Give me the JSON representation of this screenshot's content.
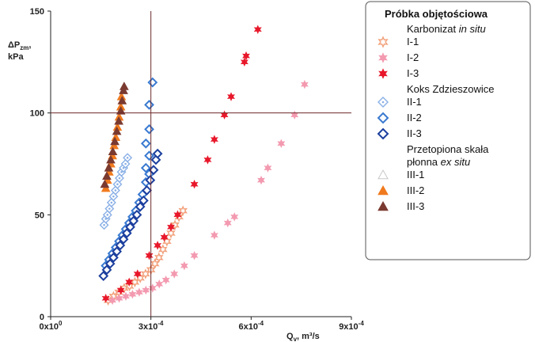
{
  "chart_data": {
    "type": "scatter",
    "ylabel_line1": "ΔP",
    "ylabel_sub": "zm",
    "ylabel_line2": "kPa",
    "xlabel_main": "Q",
    "xlabel_sub": "v",
    "xlabel_unit": "m³/s",
    "xlim": [
      0,
      0.0009
    ],
    "ylim": [
      0,
      150
    ],
    "x_ticks": [
      {
        "value": 0,
        "base": "0x10",
        "exp": "0"
      },
      {
        "value": 0.0003,
        "base": "3x10",
        "exp": "-4"
      },
      {
        "value": 0.0006,
        "base": "6x10",
        "exp": "-4"
      },
      {
        "value": 0.0009,
        "base": "9x10",
        "exp": "-4"
      }
    ],
    "y_ticks": [
      "0",
      "50",
      "100",
      "150"
    ],
    "reference_lines": {
      "x": 0.0003,
      "y": 100
    },
    "grid": false,
    "legend": {
      "title": "Próbka objętościowa",
      "position": "right",
      "groups": [
        {
          "heading": [
            "Koks Zdzieszowice"
          ]
        }
      ]
    },
    "legend_rows": [
      {
        "lines": [
          {
            "parts": [
              {
                "text": "Karbonizat "
              },
              {
                "text": "in situ",
                "italic": true
              }
            ]
          },
          {
            "parts": [
              {
                "text": "I-1"
              }
            ]
          }
        ],
        "series": 0
      },
      {
        "lines": [
          {
            "parts": [
              {
                "text": "I-2"
              }
            ]
          }
        ],
        "series": 1
      },
      {
        "lines": [
          {
            "parts": [
              {
                "text": "I-3"
              }
            ]
          }
        ],
        "series": 2
      },
      {
        "lines": [
          {
            "parts": [
              {
                "text": "Koks Zdzieszowice"
              }
            ]
          },
          {
            "parts": [
              {
                "text": "II-1"
              }
            ]
          }
        ],
        "series": 3
      },
      {
        "lines": [
          {
            "parts": [
              {
                "text": "II-2"
              }
            ]
          }
        ],
        "series": 4
      },
      {
        "lines": [
          {
            "parts": [
              {
                "text": "II-3"
              }
            ]
          }
        ],
        "series": 5
      },
      {
        "lines": [
          {
            "parts": [
              {
                "text": "Przetopiona skała"
              }
            ]
          },
          {
            "parts": [
              {
                "text": "płonna "
              },
              {
                "text": "ex situ",
                "italic": true
              }
            ]
          },
          {
            "parts": [
              {
                "text": "III-1"
              }
            ]
          }
        ],
        "series": 6
      },
      {
        "lines": [
          {
            "parts": [
              {
                "text": "III-2"
              }
            ]
          }
        ],
        "series": 7
      },
      {
        "lines": [
          {
            "parts": [
              {
                "text": "III-3"
              }
            ]
          }
        ],
        "series": 8
      }
    ],
    "series": [
      {
        "name": "I-1",
        "marker": "star-open",
        "color": "#f2a07a",
        "points": [
          [
            0.000172,
            8
          ],
          [
            0.000188,
            10
          ],
          [
            0.000204,
            12
          ],
          [
            0.00022,
            14
          ],
          [
            0.000236,
            15
          ],
          [
            0.000252,
            17
          ],
          [
            0.000268,
            19
          ],
          [
            0.000284,
            21
          ],
          [
            0.0003,
            23
          ],
          [
            0.000312,
            26
          ],
          [
            0.000324,
            29
          ],
          [
            0.000336,
            33
          ],
          [
            0.000348,
            37
          ],
          [
            0.00036,
            41
          ],
          [
            0.000372,
            45
          ],
          [
            0.000384,
            49
          ],
          [
            0.000396,
            52
          ]
        ]
      },
      {
        "name": "I-2",
        "marker": "star",
        "color": "#f39ab0",
        "points": [
          [
            0.000185,
            8
          ],
          [
            0.000205,
            9
          ],
          [
            0.000225,
            10
          ],
          [
            0.000245,
            11
          ],
          [
            0.000265,
            12
          ],
          [
            0.000285,
            13
          ],
          [
            0.000305,
            14
          ],
          [
            0.000325,
            16
          ],
          [
            0.000345,
            18
          ],
          [
            0.00037,
            21
          ],
          [
            0.0004,
            25
          ],
          [
            0.00043,
            30
          ],
          [
            0.00049,
            40
          ],
          [
            0.00053,
            46
          ],
          [
            0.00055,
            49
          ],
          [
            0.00063,
            67
          ],
          [
            0.00065,
            73
          ],
          [
            0.00069,
            85
          ],
          [
            0.00073,
            99
          ],
          [
            0.00076,
            114
          ]
        ]
      },
      {
        "name": "I-3",
        "marker": "star",
        "color": "#e8172a",
        "points": [
          [
            0.000165,
            9
          ],
          [
            0.00021,
            13
          ],
          [
            0.000235,
            17
          ],
          [
            0.00026,
            21
          ],
          [
            0.000295,
            30
          ],
          [
            0.00032,
            35
          ],
          [
            0.00034,
            39
          ],
          [
            0.00036,
            44
          ],
          [
            0.00038,
            50
          ],
          [
            0.00043,
            65
          ],
          [
            0.00047,
            77
          ],
          [
            0.00049,
            87
          ],
          [
            0.00052,
            99
          ],
          [
            0.00054,
            108
          ],
          [
            0.00058,
            125
          ],
          [
            0.000585,
            128
          ],
          [
            0.00062,
            141
          ]
        ]
      },
      {
        "name": "II-1",
        "marker": "diamond-dot",
        "color": "#8ab0e6",
        "points": [
          [
            0.00016,
            45
          ],
          [
            0.000165,
            48
          ],
          [
            0.00017,
            50
          ],
          [
            0.000176,
            53
          ],
          [
            0.000182,
            56
          ],
          [
            0.000188,
            59
          ],
          [
            0.000194,
            62
          ],
          [
            0.0002,
            65
          ],
          [
            0.000206,
            68
          ],
          [
            0.000212,
            71
          ],
          [
            0.000218,
            73
          ],
          [
            0.000224,
            75
          ],
          [
            0.00023,
            78
          ]
        ]
      },
      {
        "name": "II-2",
        "marker": "diamond-open",
        "color": "#3a7ad0",
        "points": [
          [
            0.000165,
            25
          ],
          [
            0.000175,
            28
          ],
          [
            0.000185,
            31
          ],
          [
            0.000195,
            34
          ],
          [
            0.000205,
            37
          ],
          [
            0.000215,
            40
          ],
          [
            0.000225,
            43
          ],
          [
            0.000235,
            46
          ],
          [
            0.000245,
            49
          ],
          [
            0.000255,
            52
          ],
          [
            0.000265,
            56
          ],
          [
            0.000275,
            60
          ],
          [
            0.000285,
            66
          ],
          [
            0.000295,
            70
          ],
          [
            0.000285,
            73
          ],
          [
            0.000295,
            79
          ],
          [
            0.000285,
            85
          ],
          [
            0.000295,
            92
          ],
          [
            0.000295,
            104
          ],
          [
            0.000305,
            115
          ]
        ]
      },
      {
        "name": "II-3",
        "marker": "diamond-open",
        "color": "#1c3f9e",
        "points": [
          [
            0.000158,
            20
          ],
          [
            0.000168,
            23
          ],
          [
            0.000178,
            26
          ],
          [
            0.000188,
            29
          ],
          [
            0.000198,
            32
          ],
          [
            0.000208,
            35
          ],
          [
            0.000218,
            38
          ],
          [
            0.000228,
            41
          ],
          [
            0.000238,
            44
          ],
          [
            0.000248,
            47
          ],
          [
            0.000258,
            50
          ],
          [
            0.000268,
            54
          ],
          [
            0.000278,
            57
          ],
          [
            0.000288,
            62
          ],
          [
            0.000298,
            67
          ],
          [
            0.000308,
            72
          ],
          [
            0.000315,
            77
          ],
          [
            0.00032,
            80
          ]
        ]
      },
      {
        "name": "III-1",
        "marker": "triangle-open",
        "color": "#c8c8c8",
        "points": []
      },
      {
        "name": "III-2",
        "marker": "triangle",
        "color": "#f07a1e",
        "points": [
          [
            0.000165,
            63
          ],
          [
            0.00017,
            67
          ],
          [
            0.000175,
            71
          ],
          [
            0.00018,
            75
          ],
          [
            0.000185,
            79
          ],
          [
            0.00019,
            84
          ],
          [
            0.000195,
            88
          ],
          [
            0.0002,
            93
          ],
          [
            0.000205,
            98
          ],
          [
            0.00021,
            103
          ],
          [
            0.000212,
            108
          ]
        ]
      },
      {
        "name": "III-3",
        "marker": "triangle",
        "color": "#7a3a30",
        "points": [
          [
            0.000162,
            65
          ],
          [
            0.000168,
            69
          ],
          [
            0.000174,
            73
          ],
          [
            0.00018,
            77
          ],
          [
            0.000186,
            81
          ],
          [
            0.000192,
            86
          ],
          [
            0.000198,
            91
          ],
          [
            0.000204,
            96
          ],
          [
            0.00021,
            101
          ],
          [
            0.000214,
            106
          ],
          [
            0.000218,
            111
          ],
          [
            0.00022,
            113
          ]
        ]
      }
    ]
  }
}
